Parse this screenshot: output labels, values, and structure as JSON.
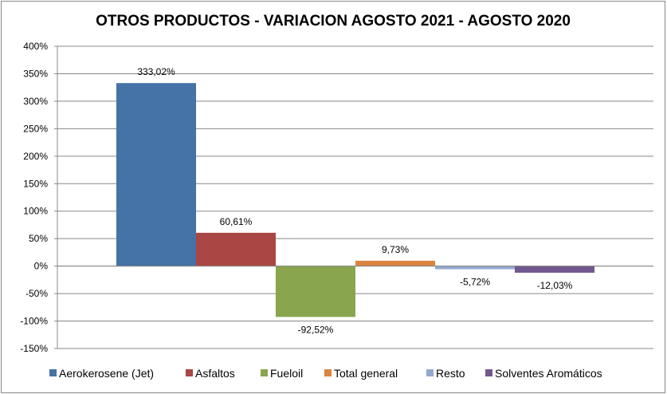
{
  "chart_data": {
    "type": "bar",
    "title": "OTROS PRODUCTOS - VARIACION AGOSTO 2021 - AGOSTO 2020",
    "xlabel": "",
    "ylabel": "",
    "ylim": [
      -150,
      400
    ],
    "yticks": [
      400,
      350,
      300,
      250,
      200,
      150,
      100,
      50,
      0,
      -50,
      -100,
      -150
    ],
    "ytick_labels": [
      "400%",
      "350%",
      "300%",
      "250%",
      "200%",
      "150%",
      "100%",
      "50%",
      "0%",
      "-50%",
      "-100%",
      "-150%"
    ],
    "grid": true,
    "legend_position": "bottom",
    "series": [
      {
        "name": "Aerokerosene (Jet)",
        "value": 333.02,
        "label": "333,02%",
        "color": "#4572A7"
      },
      {
        "name": "Asfaltos",
        "value": 60.61,
        "label": "60,61%",
        "color": "#AA4643"
      },
      {
        "name": "Fueloil",
        "value": -92.52,
        "label": "-92,52%",
        "color": "#89A54E"
      },
      {
        "name": "Total general",
        "value": 9.73,
        "label": "9,73%",
        "color": "#DB843D"
      },
      {
        "name": "Resto",
        "value": -5.72,
        "label": "-5,72%",
        "color": "#93A9CF"
      },
      {
        "name": "Solventes Aromáticos",
        "value": -12.03,
        "label": "-12,03%",
        "color": "#71588F"
      }
    ]
  }
}
